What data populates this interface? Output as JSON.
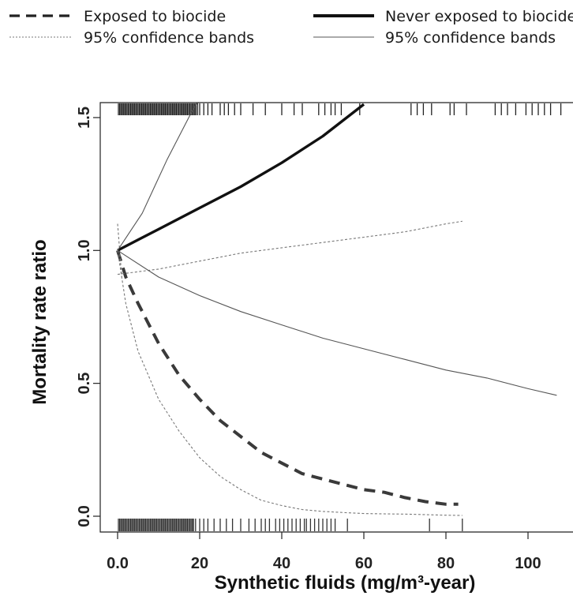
{
  "chart_data": {
    "type": "line",
    "xlabel": "Synthetic fluids (mg/m³-year)",
    "ylabel": "Mortality rate ratio",
    "xlim": [
      -3,
      110
    ],
    "ylim": [
      -0.05,
      1.55
    ],
    "x_ticks": [
      0,
      20,
      40,
      60,
      80,
      100
    ],
    "x_tick_labels": [
      "0.0",
      "20",
      "40",
      "60",
      "80",
      "100"
    ],
    "y_ticks": [
      0.0,
      0.5,
      1.0,
      1.5
    ],
    "y_tick_labels": [
      "0.0",
      "0.5",
      "1.0",
      "1.5"
    ],
    "legend": {
      "placement": "top",
      "entries": [
        {
          "label": "Exposed to biocide",
          "style": "dashed-thick"
        },
        {
          "label": "95% confidence bands",
          "style": "dotted-thin"
        },
        {
          "label": "Never exposed to biocide",
          "style": "solid-thick"
        },
        {
          "label": "95% confidence bands",
          "style": "solid-thin"
        }
      ]
    },
    "series": [
      {
        "name": "Exposed to biocide",
        "style": "dashed-thick",
        "x": [
          0,
          2,
          5,
          10,
          15,
          20,
          25,
          30,
          35,
          40,
          45,
          50,
          55,
          60,
          65,
          70,
          75,
          80,
          83
        ],
        "y": [
          1.0,
          0.9,
          0.8,
          0.65,
          0.53,
          0.44,
          0.36,
          0.3,
          0.24,
          0.2,
          0.16,
          0.14,
          0.12,
          0.1,
          0.09,
          0.07,
          0.055,
          0.045,
          0.045
        ]
      },
      {
        "name": "95% confidence bands",
        "style": "dotted-thin",
        "x": [
          0,
          2,
          5,
          10,
          15,
          20,
          25,
          30,
          35,
          40,
          45,
          50,
          55,
          60,
          65,
          70,
          75,
          80,
          84
        ],
        "y": [
          1.0,
          0.8,
          0.62,
          0.44,
          0.32,
          0.22,
          0.15,
          0.1,
          0.06,
          0.04,
          0.025,
          0.018,
          0.014,
          0.01,
          0.009,
          0.008,
          0.006,
          0.004,
          0.003
        ]
      },
      {
        "name": "95% confidence bands",
        "style": "dotted-thin",
        "x": [
          0,
          10,
          20,
          30,
          40,
          50,
          60,
          70,
          80,
          84
        ],
        "y": [
          0.91,
          0.93,
          0.96,
          0.99,
          1.01,
          1.03,
          1.05,
          1.07,
          1.1,
          1.11
        ]
      },
      {
        "name": "95% confidence bands",
        "style": "dotted-thin",
        "x": [
          0,
          0.3,
          0.6,
          1.0
        ],
        "y": [
          1.1,
          1.04,
          0.98,
          0.9
        ]
      },
      {
        "name": "Never exposed to biocide",
        "style": "solid-thick",
        "x": [
          0,
          5,
          10,
          20,
          30,
          40,
          50,
          60
        ],
        "y": [
          1.0,
          1.04,
          1.08,
          1.16,
          1.24,
          1.33,
          1.43,
          1.55
        ]
      },
      {
        "name": "95% confidence bands",
        "style": "solid-thin",
        "x": [
          0,
          3,
          6,
          9,
          12,
          15,
          18,
          20
        ],
        "y": [
          1.0,
          1.07,
          1.14,
          1.24,
          1.34,
          1.43,
          1.52,
          1.57
        ]
      },
      {
        "name": "95% confidence bands",
        "style": "solid-thin",
        "x": [
          0,
          10,
          20,
          30,
          40,
          50,
          60,
          70,
          80,
          90,
          100,
          107
        ],
        "y": [
          1.0,
          0.9,
          0.83,
          0.77,
          0.72,
          0.67,
          0.63,
          0.59,
          0.55,
          0.52,
          0.48,
          0.455
        ]
      }
    ],
    "rug_top": [
      0.2,
      0.5,
      0.8,
      1.1,
      1.4,
      1.7,
      2.0,
      2.3,
      2.6,
      2.9,
      3.2,
      3.5,
      3.8,
      4.1,
      4.4,
      4.7,
      5.0,
      5.3,
      5.6,
      5.9,
      6.2,
      6.5,
      6.8,
      7.1,
      7.4,
      7.7,
      8.0,
      8.3,
      8.6,
      8.9,
      9.2,
      9.5,
      9.8,
      10.1,
      10.4,
      10.7,
      11.0,
      11.3,
      11.6,
      11.9,
      12.2,
      12.5,
      12.8,
      13.1,
      13.4,
      13.7,
      14.0,
      14.3,
      14.6,
      14.9,
      15.2,
      15.5,
      15.8,
      16.1,
      16.4,
      16.7,
      17.0,
      17.3,
      17.6,
      17.9,
      18.2,
      18.5,
      18.8,
      19.1,
      19.5,
      20.0,
      21.0,
      22.0,
      23.0,
      25.0,
      26.0,
      27.0,
      28.5,
      30.0,
      33.0,
      36.0,
      40.0,
      43.0,
      45.0,
      49.0,
      50.5,
      52.0,
      53.0,
      54.5,
      59.0,
      71.5,
      73.0,
      74.5,
      76.5,
      81.0,
      82.0,
      85.0,
      92.0,
      93.5,
      95.0,
      97.0,
      99.5,
      101.0,
      102.5,
      104.0,
      105.5,
      108.0
    ],
    "rug_bottom": [
      0.2,
      0.5,
      0.8,
      1.1,
      1.4,
      1.7,
      2.0,
      2.3,
      2.6,
      2.9,
      3.2,
      3.5,
      3.8,
      4.1,
      4.4,
      4.7,
      5.0,
      5.3,
      5.6,
      5.9,
      6.2,
      6.5,
      6.8,
      7.1,
      7.4,
      7.7,
      8.0,
      8.3,
      8.6,
      8.9,
      9.2,
      9.5,
      9.8,
      10.1,
      10.4,
      10.7,
      11.0,
      11.3,
      11.6,
      11.9,
      12.2,
      12.5,
      12.8,
      13.1,
      13.4,
      13.7,
      14.0,
      14.3,
      14.6,
      14.9,
      15.2,
      15.5,
      15.8,
      16.1,
      16.4,
      16.7,
      17.0,
      17.3,
      17.6,
      17.9,
      18.2,
      18.5,
      19.0,
      20.0,
      21.0,
      22.0,
      23.5,
      25.0,
      26.5,
      28.0,
      30.0,
      32.0,
      33.5,
      35.0,
      36.0,
      37.0,
      38.5,
      39.5,
      40.5,
      41.5,
      42.5,
      43.5,
      44.5,
      45.5,
      46.0,
      47.0,
      48.0,
      49.0,
      50.0,
      51.0,
      52.0,
      53.0,
      56.0,
      76.0,
      84.0
    ]
  }
}
